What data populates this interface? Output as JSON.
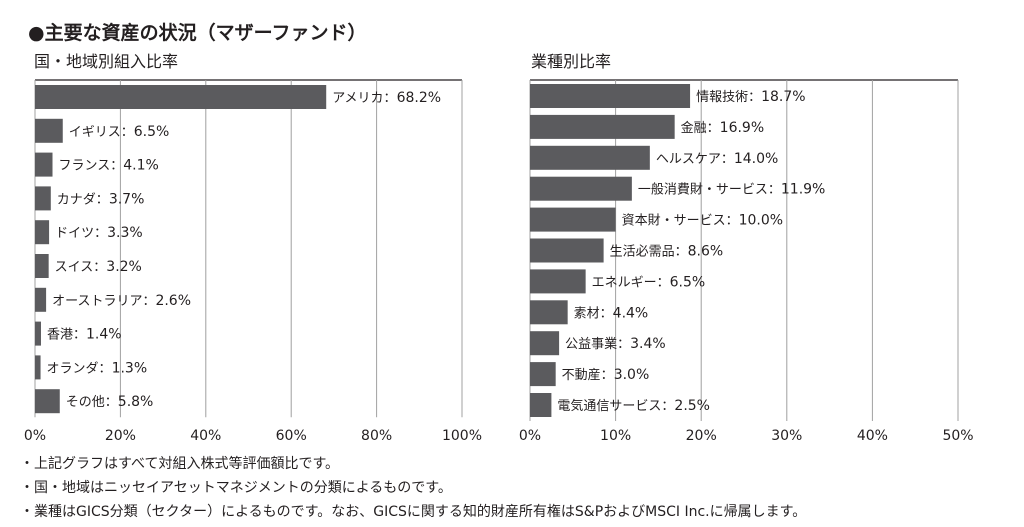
{
  "heading": "●主要な資産の状況（マザーファンド）",
  "chart_data": [
    {
      "type": "bar",
      "orientation": "horizontal",
      "title": "国・地域別組入比率",
      "categories": [
        "アメリカ",
        "イギリス",
        "フランス",
        "カナダ",
        "ドイツ",
        "スイス",
        "オーストラリア",
        "香港",
        "オランダ",
        "その他"
      ],
      "values": [
        68.2,
        6.5,
        4.1,
        3.7,
        3.3,
        3.2,
        2.6,
        1.4,
        1.3,
        5.8
      ],
      "xlim": [
        0,
        100
      ],
      "xticks": [
        "0%",
        "20%",
        "40%",
        "60%",
        "80%",
        "100%"
      ],
      "grid": true
    },
    {
      "type": "bar",
      "orientation": "horizontal",
      "title": "業種別比率",
      "categories": [
        "情報技術",
        "金融",
        "ヘルスケア",
        "一般消費財・サービス",
        "資本財・サービス",
        "生活必需品",
        "エネルギー",
        "素材",
        "公益事業",
        "不動産",
        "電気通信サービス"
      ],
      "values": [
        18.7,
        16.9,
        14.0,
        11.9,
        10.0,
        8.6,
        6.5,
        4.4,
        3.4,
        3.0,
        2.5
      ],
      "xlim": [
        0,
        50
      ],
      "xticks": [
        "0%",
        "10%",
        "20%",
        "30%",
        "40%",
        "50%"
      ],
      "grid": true
    }
  ],
  "notes": [
    "・上記グラフはすべて対組入株式等評価額比です。",
    "・国・地域はニッセイアセットマネジメントの分類によるものです。",
    "・業種はGICS分類（セクター）によるものです。なお、GICSに関する知的財産所有権はS&PおよびMSCI Inc.に帰属します。"
  ],
  "colors": {
    "bar": "#5b5b5e",
    "grid": "#a0a0a0",
    "text": "#231f20"
  }
}
